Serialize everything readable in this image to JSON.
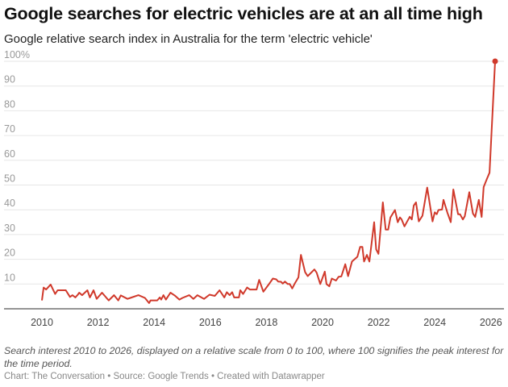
{
  "title": "Google searches for electric vehicles are at an all time high",
  "subtitle": "Google relative search index in Australia for the term 'electric vehicle'",
  "note": "Search interest 2010 to 2026, displayed on a relative scale from 0 to 100, where 100 signifies the peak interest for the time period.",
  "credit": "Chart: The Conversation • Source: Google Trends • Created with Datawrapper",
  "chart_data": {
    "type": "line",
    "title": "Google searches for electric vehicles are at an all time high",
    "xlabel": "",
    "ylabel": "",
    "xlim": [
      2010,
      2026.2
    ],
    "ylim": [
      0,
      100
    ],
    "x_ticks": [
      "2010",
      "2012",
      "2014",
      "2016",
      "2018",
      "2020",
      "2022",
      "2024",
      "2026"
    ],
    "y_ticks": [
      "0",
      "10",
      "20",
      "30",
      "40",
      "50",
      "60",
      "70",
      "80",
      "90",
      "100%"
    ],
    "grid": true,
    "line_color": "#d0392b",
    "highlight_last_point": true,
    "x": [
      2010.0,
      2010.06,
      2010.15,
      2010.31,
      2010.47,
      2010.56,
      2010.85,
      2011.0,
      2011.09,
      2011.19,
      2011.28,
      2011.33,
      2011.43,
      2011.62,
      2011.71,
      2011.84,
      2011.95,
      2012.14,
      2012.38,
      2012.57,
      2012.72,
      2012.81,
      2013.05,
      2013.15,
      2013.44,
      2013.67,
      2013.82,
      2013.87,
      2014.11,
      2014.2,
      2014.25,
      2014.33,
      2014.42,
      2014.58,
      2014.73,
      2014.9,
      2015.01,
      2015.25,
      2015.4,
      2015.54,
      2015.78,
      2015.97,
      2016.16,
      2016.33,
      2016.5,
      2016.59,
      2016.69,
      2016.78,
      2016.85,
      2017.02,
      2017.07,
      2017.17,
      2017.31,
      2017.41,
      2017.65,
      2017.74,
      2017.89,
      2018.08,
      2018.23,
      2018.35,
      2018.42,
      2018.52,
      2018.58,
      2018.66,
      2018.76,
      2018.83,
      2018.92,
      2019.0,
      2019.14,
      2019.23,
      2019.38,
      2019.47,
      2019.71,
      2019.79,
      2019.92,
      2020.08,
      2020.14,
      2020.24,
      2020.33,
      2020.48,
      2020.57,
      2020.67,
      2020.81,
      2020.91,
      2021.05,
      2021.24,
      2021.34,
      2021.42,
      2021.48,
      2021.58,
      2021.67,
      2021.84,
      2021.91,
      2021.99,
      2022.15,
      2022.25,
      2022.34,
      2022.42,
      2022.58,
      2022.68,
      2022.76,
      2022.82,
      2022.92,
      2023.11,
      2023.18,
      2023.25,
      2023.33,
      2023.43,
      2023.56,
      2023.73,
      2023.92,
      2024.0,
      2024.07,
      2024.13,
      2024.26,
      2024.31,
      2024.45,
      2024.57,
      2024.66,
      2024.83,
      2024.9,
      2025.0,
      2025.07,
      2025.23,
      2025.36,
      2025.44,
      2025.57,
      2025.67,
      2025.74,
      2025.86,
      2025.95,
      2026.15
    ],
    "y": [
      3.4,
      8.6,
      7.8,
      9.8,
      6,
      7.5,
      7.5,
      4.8,
      5.5,
      4.6,
      5.7,
      6.5,
      5.5,
      7.5,
      4.6,
      7.5,
      4,
      6.5,
      3.4,
      5.5,
      3.4,
      5.4,
      4,
      4.4,
      5.5,
      4.4,
      2.3,
      3.4,
      3.4,
      4.6,
      3.7,
      5.5,
      3.7,
      6.5,
      5.4,
      3.7,
      4.4,
      5.5,
      4,
      5.5,
      4,
      5.7,
      5.2,
      7.5,
      4.6,
      6.7,
      5.5,
      6.7,
      4.6,
      4.6,
      7.5,
      6,
      8.6,
      7.8,
      7.8,
      11.7,
      6.9,
      9.8,
      12.2,
      11.9,
      11,
      10.9,
      10.2,
      11,
      10,
      10,
      8.2,
      10,
      12.7,
      21.8,
      14.8,
      13.2,
      15.9,
      14.6,
      10,
      15,
      10,
      9.1,
      12.2,
      11.4,
      12.9,
      13.1,
      18,
      13.2,
      19.1,
      21,
      25,
      25,
      19.1,
      21.8,
      19.1,
      35,
      24,
      22.2,
      43,
      32,
      32,
      36.9,
      39.9,
      35,
      36.9,
      36.1,
      33.3,
      37.2,
      36.1,
      41.7,
      43,
      35.3,
      37.6,
      49,
      35.3,
      39,
      38.2,
      39.9,
      40.1,
      44,
      38.8,
      35,
      48.2,
      38.2,
      38.2,
      36.1,
      37.4,
      47.1,
      38.5,
      37.1,
      44,
      37.1,
      49.2,
      52.5,
      55,
      100
    ]
  }
}
